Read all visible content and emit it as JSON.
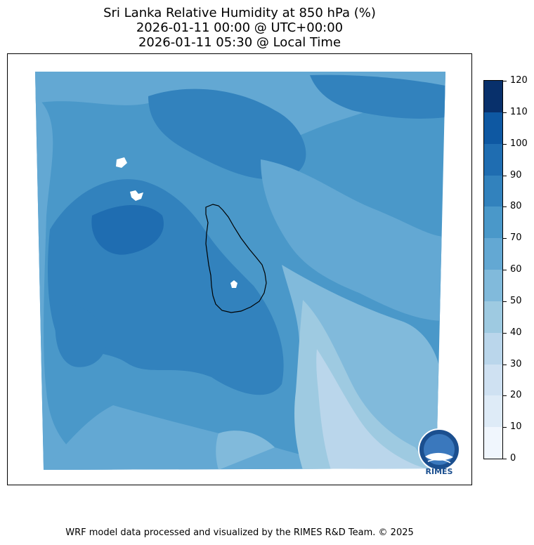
{
  "title": {
    "line1": "Sri Lanka Relative Humidity at 850 hPa (%)",
    "line2": "2026-01-11 00:00 @ UTC+00:00",
    "line3": "2026-01-11 05:30 @ Local Time"
  },
  "colorbar": {
    "levels": [
      "0",
      "10",
      "20",
      "30",
      "40",
      "50",
      "60",
      "70",
      "80",
      "90",
      "100",
      "110",
      "120"
    ],
    "colors": [
      "#f0f6fd",
      "#deebf7",
      "#cfe1f2",
      "#bad6eb",
      "#9ecae1",
      "#81badb",
      "#63a8d3",
      "#4a98c9",
      "#3282bd",
      "#1f6db1",
      "#0e58a2",
      "#08306b"
    ]
  },
  "logo": {
    "name": "rimes-logo-icon",
    "text": "RIMES"
  },
  "footer": "WRF model data processed and visualized by the RIMES R&D Team. © 2025"
}
